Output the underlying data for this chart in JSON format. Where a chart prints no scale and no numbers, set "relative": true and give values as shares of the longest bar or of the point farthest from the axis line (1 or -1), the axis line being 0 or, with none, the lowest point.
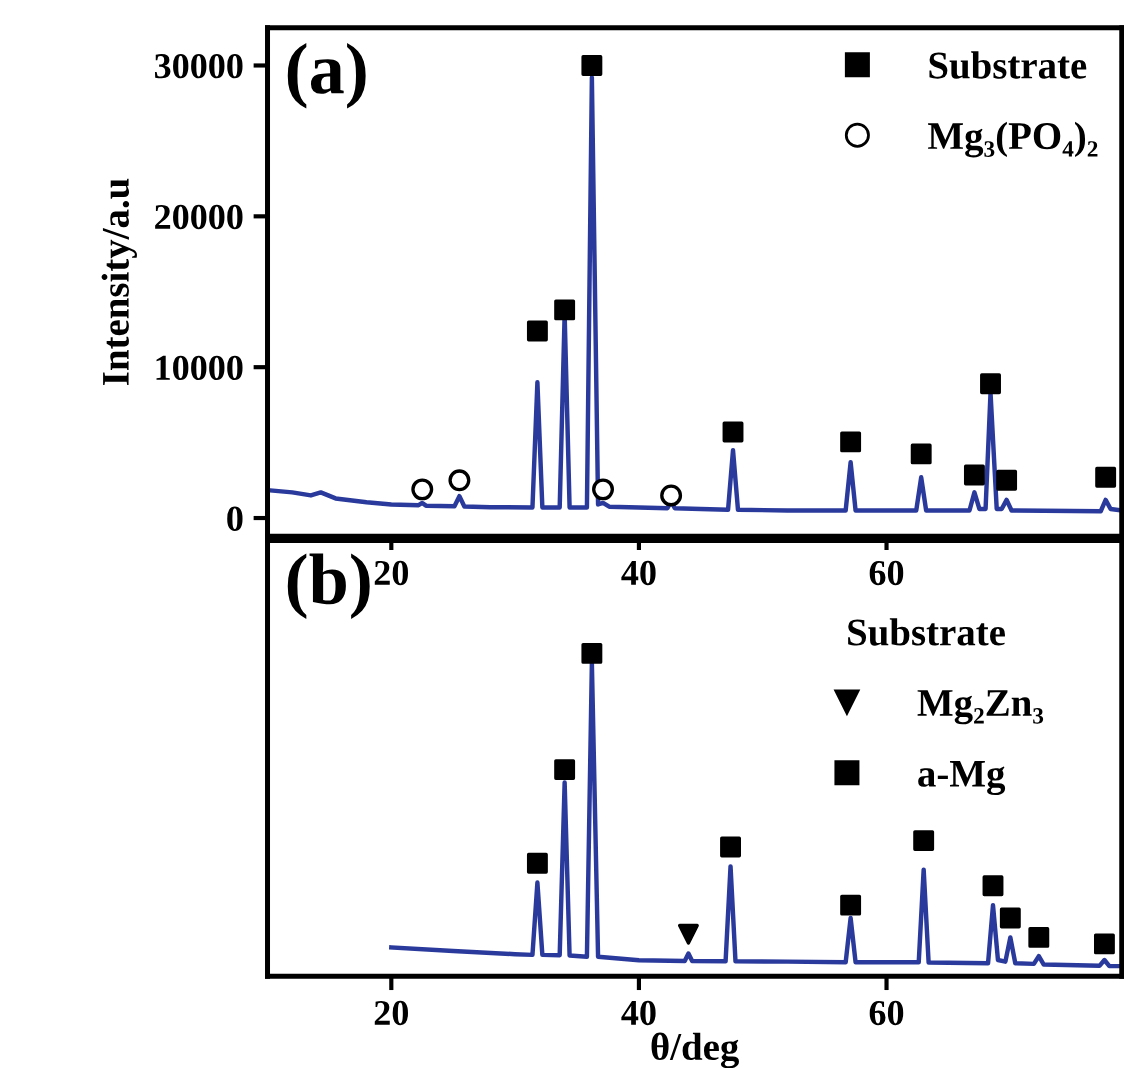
{
  "chart_data": [
    {
      "type": "line",
      "ylabel": "Intensity/a.u",
      "annotations": [
        "(a)"
      ],
      "xlim": [
        10,
        79
      ],
      "xticks": [
        20,
        40,
        60
      ],
      "ylim": [
        -1200,
        32500
      ],
      "yticks": [
        0,
        10000,
        20000,
        30000
      ],
      "grid": false,
      "legend": "top right",
      "series": [
        {
          "type": "line",
          "color": "#2a3a9c",
          "marker": "none",
          "line_style": "solid",
          "x": [
            10,
            12,
            13.5,
            14.3,
            15.5,
            18,
            20,
            22.2,
            22.5,
            22.8,
            25.1,
            25.5,
            25.9,
            28,
            31.4,
            31.8,
            32.2,
            33.6,
            34.0,
            34.4,
            35.8,
            36.2,
            36.7,
            37.1,
            37.6,
            40,
            42.3,
            42.6,
            42.9,
            45,
            47.2,
            47.6,
            48.0,
            52,
            56.7,
            57.1,
            57.5,
            62.4,
            62.8,
            63.2,
            66.7,
            67.1,
            67.5,
            68.0,
            68.4,
            68.9,
            69.3,
            69.7,
            70.1,
            77.3,
            77.7,
            78.1,
            79
          ],
          "values": [
            1850,
            1700,
            1500,
            1700,
            1300,
            1050,
            900,
            850,
            1000,
            820,
            780,
            1450,
            760,
            720,
            700,
            9000,
            700,
            700,
            13500,
            700,
            700,
            29200,
            900,
            1000,
            750,
            700,
            650,
            1100,
            650,
            600,
            550,
            4500,
            550,
            500,
            500,
            3700,
            500,
            500,
            2700,
            500,
            500,
            1700,
            600,
            600,
            8300,
            600,
            600,
            1200,
            500,
            450,
            1200,
            600,
            500
          ]
        },
        {
          "type": "scatter",
          "name": "Substrate",
          "color": "#000000",
          "marker": "square",
          "x": [
            31.8,
            34.0,
            36.2,
            47.6,
            57.1,
            62.8,
            67.1,
            68.4,
            69.7,
            77.7
          ],
          "values": [
            12400,
            13800,
            30000,
            5700,
            5050,
            4250,
            2850,
            8900,
            2500,
            2700
          ]
        },
        {
          "type": "scatter",
          "name": "Mg₃(PO₄)₂",
          "color": "#000000",
          "marker": "circle",
          "x": [
            22.5,
            25.5,
            37.1,
            42.6
          ],
          "values": [
            1900,
            2500,
            1900,
            1500
          ]
        }
      ]
    },
    {
      "type": "line",
      "xlabel": "θ/deg",
      "annotations": [
        "(b)"
      ],
      "relative": true,
      "tick_labels": "x",
      "xlim": [
        10,
        79
      ],
      "xticks": [
        20,
        40,
        60
      ],
      "grid": false,
      "legend": "top right",
      "legend_title": "Substrate",
      "series": [
        {
          "type": "line",
          "color": "#2a3a9c",
          "marker": "none",
          "line_style": "solid",
          "x": [
            20,
            25,
            30,
            31.4,
            31.8,
            32.2,
            33.6,
            34.0,
            34.4,
            35.8,
            36.2,
            36.7,
            40,
            43.7,
            44.0,
            44.3,
            47.0,
            47.4,
            47.8,
            52,
            56.7,
            57.1,
            57.5,
            62.6,
            63.0,
            63.4,
            68.2,
            68.6,
            69.0,
            69.6,
            70.0,
            70.4,
            71.9,
            72.3,
            72.7,
            77.2,
            77.6,
            78,
            79
          ],
          "values": [
            0.089,
            0.078,
            0.068,
            0.066,
            0.29,
            0.066,
            0.065,
            0.6,
            0.064,
            0.06,
            0.97,
            0.06,
            0.049,
            0.047,
            0.07,
            0.047,
            0.046,
            0.34,
            0.046,
            0.045,
            0.043,
            0.18,
            0.043,
            0.043,
            0.33,
            0.042,
            0.04,
            0.22,
            0.05,
            0.045,
            0.12,
            0.04,
            0.038,
            0.062,
            0.036,
            0.032,
            0.05,
            0.031,
            0.031
          ]
        },
        {
          "type": "scatter",
          "name": "Mg₂Zn₃",
          "color": "#000000",
          "marker": "triangle",
          "x": [
            44.0
          ],
          "values": [
            0.13
          ]
        },
        {
          "type": "scatter",
          "name": "a-Mg",
          "color": "#000000",
          "marker": "square",
          "x": [
            31.8,
            34.0,
            36.2,
            47.4,
            57.1,
            63.0,
            68.6,
            70.0,
            72.3,
            77.6
          ],
          "values": [
            0.35,
            0.64,
            1.0,
            0.4,
            0.22,
            0.42,
            0.28,
            0.18,
            0.12,
            0.1
          ]
        }
      ]
    }
  ]
}
